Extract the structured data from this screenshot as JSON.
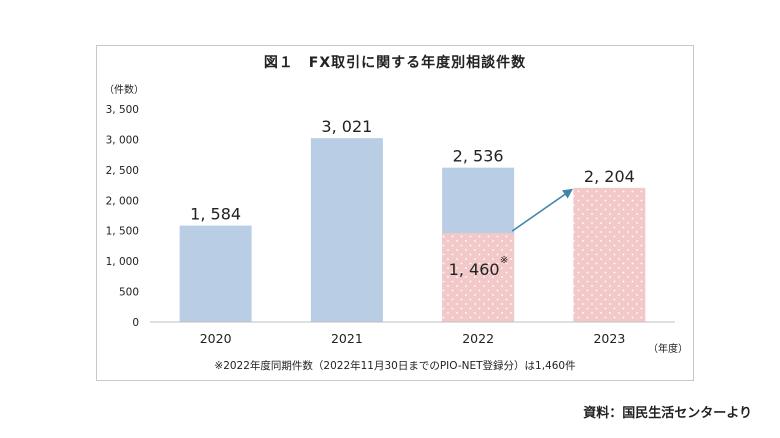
{
  "chart_data": {
    "type": "bar",
    "title": "図１　FX取引に関する年度別相談件数",
    "ylabel": "（件数）",
    "xlabel": "（年度）",
    "ylim": [
      0,
      3500
    ],
    "yticks": [
      0,
      500,
      1000,
      1500,
      2000,
      2500,
      3000,
      3500
    ],
    "ytick_labels": [
      "0",
      "500",
      "1, 000",
      "1, 500",
      "2, 000",
      "2, 500",
      "3, 000",
      "3, 500"
    ],
    "categories": [
      "2020",
      "2021",
      "2022",
      "2023"
    ],
    "values": [
      1584,
      3021,
      2536,
      2204
    ],
    "value_labels": [
      "1, 584",
      "3, 021",
      "2, 536",
      "2, 204"
    ],
    "partial": {
      "category": "2022",
      "value": 1460,
      "label": "1, 460",
      "mark": "※"
    },
    "colors": {
      "bar": "#b9cde4",
      "partial": "#f2c8c8",
      "partial_dot": "#ffffff",
      "arrow": "#3e86a8"
    },
    "grid": false,
    "footnote": "※2022年度同期件数（2022年11月30日までのPIO-NET登録分）は1,460件"
  },
  "source": "資料：国民生活センターより"
}
